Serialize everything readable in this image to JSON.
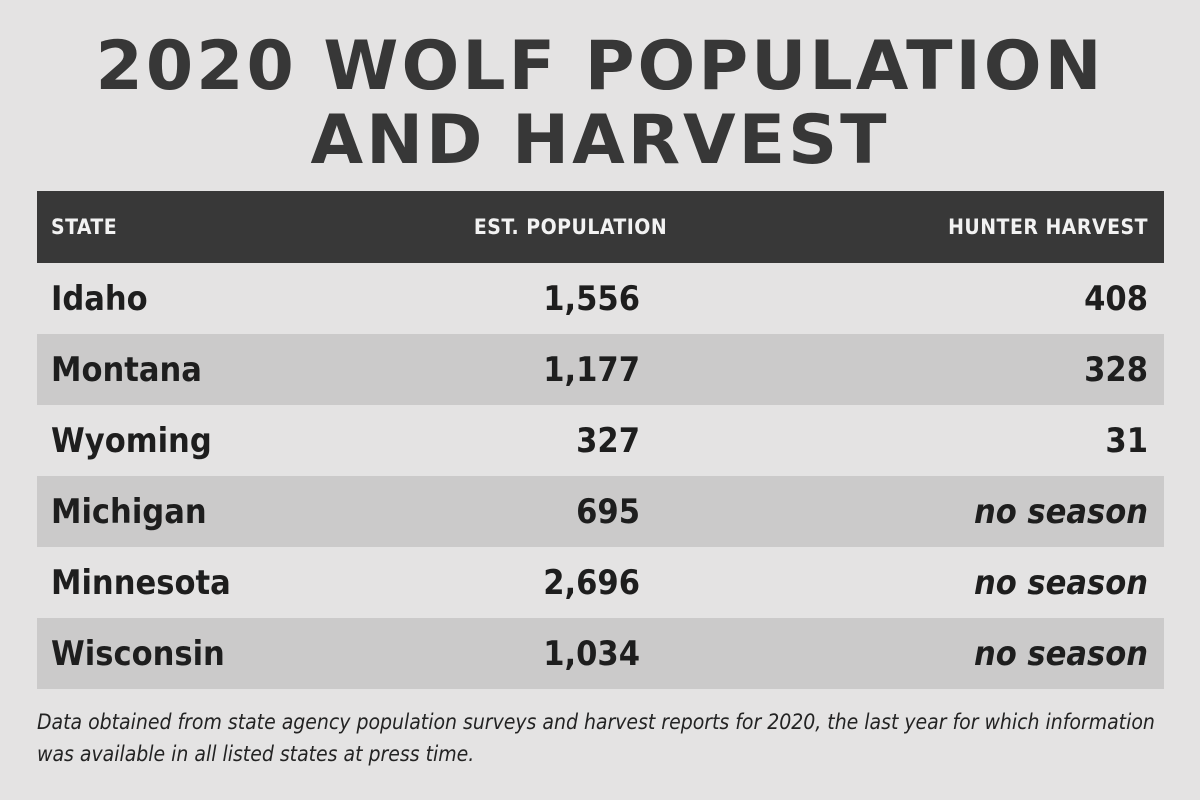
{
  "title_line1": "2020 WOLF POPULATION",
  "title_line2": "AND HARVEST",
  "chart_data": {
    "type": "table",
    "columns": [
      "STATE",
      "EST. POPULATION",
      "HUNTER HARVEST"
    ],
    "rows": [
      {
        "state": "Idaho",
        "population": "1,556",
        "harvest": "408"
      },
      {
        "state": "Montana",
        "population": "1,177",
        "harvest": "328"
      },
      {
        "state": "Wyoming",
        "population": "327",
        "harvest": "31"
      },
      {
        "state": "Michigan",
        "population": "695",
        "harvest": "no season"
      },
      {
        "state": "Minnesota",
        "population": "2,696",
        "harvest": "no season"
      },
      {
        "state": "Wisconsin",
        "population": "1,034",
        "harvest": "no season"
      }
    ]
  },
  "footnote": "Data obtained from state agency population surveys and harvest reports for 2020, the last year for which information was available in all listed states at press time.",
  "colors": {
    "background": "#e4e3e3",
    "header": "#383838",
    "stripe": "#cbcaca",
    "title": "#373737"
  }
}
